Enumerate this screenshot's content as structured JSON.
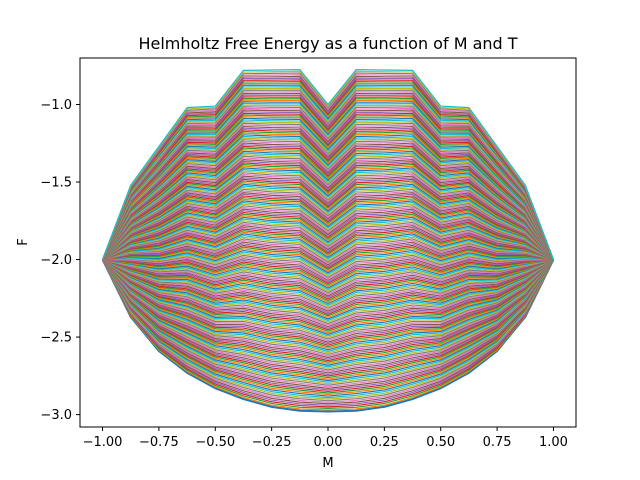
{
  "chart_data": {
    "type": "line",
    "title": "Helmholtz Free Energy as a function of M and T",
    "xlabel": "M",
    "ylabel": "F",
    "xlim": [
      -1.1,
      1.1
    ],
    "ylim": [
      -3.08,
      -0.7
    ],
    "xticks": [
      -1.0,
      -0.75,
      -0.5,
      -0.25,
      0.0,
      0.25,
      0.5,
      0.75,
      1.0
    ],
    "xtick_labels": [
      "−1.00",
      "−0.75",
      "−0.50",
      "−0.25",
      "0.00",
      "0.25",
      "0.50",
      "0.75",
      "1.00"
    ],
    "yticks": [
      -3.0,
      -2.5,
      -2.0,
      -1.5,
      -1.0
    ],
    "ytick_labels": [
      "−3.0",
      "−2.5",
      "−2.0",
      "−1.5",
      "−1.0"
    ],
    "grid": false,
    "legend": "none",
    "series_count_approx": 200,
    "series_colors": [
      "#1f77b4",
      "#ff7f0e",
      "#2ca02c",
      "#d62728",
      "#9467bd",
      "#8c564b",
      "#e377c2",
      "#7f7f7f",
      "#bcbd22",
      "#17becf"
    ],
    "upper_envelope": {
      "x": [
        -1.0,
        -0.875,
        -0.625,
        -0.5,
        -0.375,
        -0.125,
        0.0,
        0.125,
        0.375,
        0.5,
        0.625,
        0.875,
        1.0
      ],
      "y": [
        -2.0,
        -1.52,
        -1.02,
        -1.01,
        -0.78,
        -0.775,
        -1.0,
        -0.775,
        -0.78,
        -1.01,
        -1.02,
        -1.52,
        -2.0
      ]
    },
    "lower_envelope": {
      "x": [
        -1.0,
        -0.875,
        -0.75,
        -0.625,
        -0.5,
        -0.375,
        -0.25,
        -0.125,
        0.0,
        0.125,
        0.25,
        0.375,
        0.5,
        0.625,
        0.75,
        0.875,
        1.0
      ],
      "y": [
        -2.0,
        -2.37,
        -2.59,
        -2.73,
        -2.83,
        -2.9,
        -2.95,
        -2.975,
        -2.98,
        -2.975,
        -2.95,
        -2.9,
        -2.83,
        -2.73,
        -2.59,
        -2.37,
        -2.0
      ]
    }
  }
}
